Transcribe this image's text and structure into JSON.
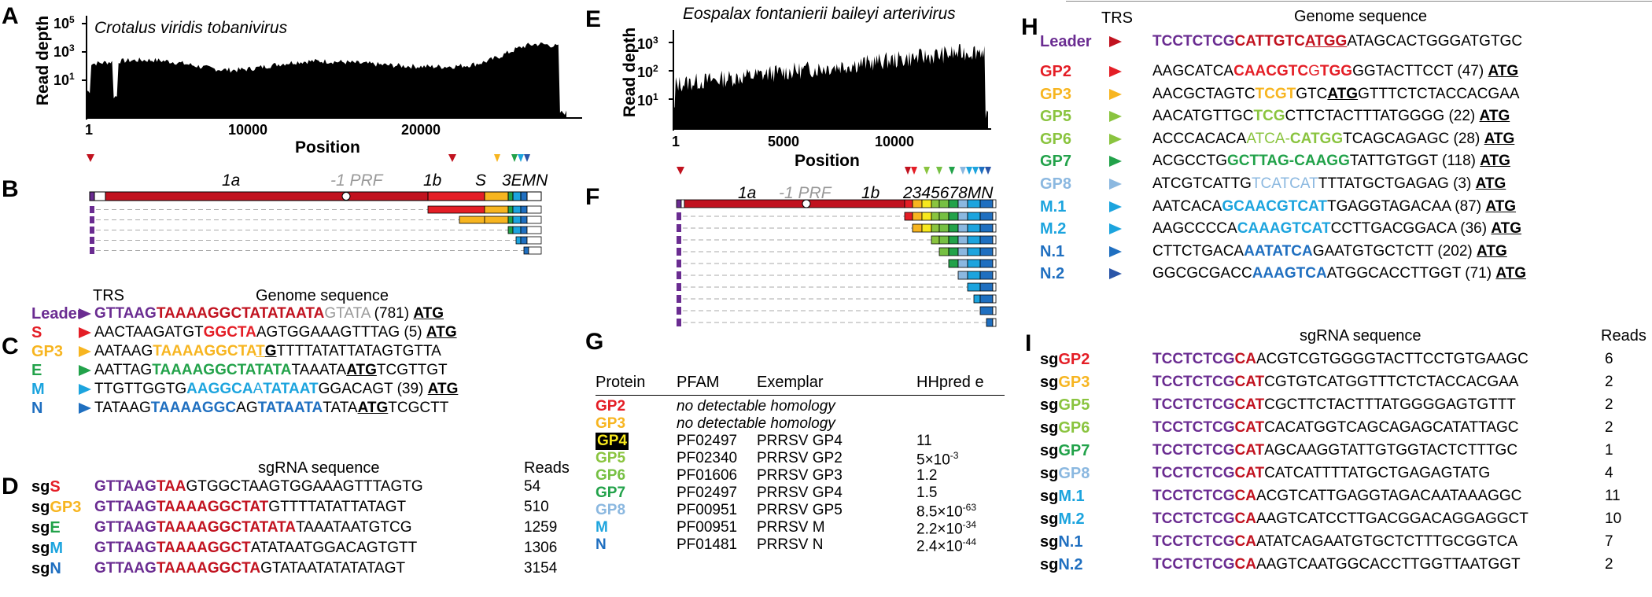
{
  "colors": {
    "leader": "#6a2c91",
    "red": "#e41e26",
    "darkred": "#c1121f",
    "orange": "#f7b520",
    "yellow": "#f7c81e",
    "green": "#22a24a",
    "lightgreen": "#8ac43f",
    "limegreen": "#76c043",
    "paleblue": "#8bb8e0",
    "cyan": "#1ca4de",
    "blue": "#1f6fc0",
    "navy": "#2a55a8",
    "gray": "#999999"
  },
  "panelA": {
    "letter": "A",
    "title": "Crotalus viridis tobanivirus",
    "ylabel": "Read depth",
    "xlabel": "Position",
    "yticks": [
      "10",
      "10",
      "10"
    ],
    "yticks_exp": [
      "5",
      "3",
      "1"
    ],
    "xticks": [
      "1",
      "10000",
      "20000"
    ]
  },
  "panelE": {
    "letter": "E",
    "title": "Eospalax fontanierii baileyi arterivirus",
    "ylabel": "Read depth",
    "xlabel": "Position",
    "yticks": [
      "10",
      "10",
      "10"
    ],
    "yticks_exp": [
      "3",
      "2",
      "1"
    ],
    "xticks": [
      "1",
      "5000",
      "10000"
    ]
  },
  "panelB": {
    "letter": "B",
    "labels": [
      "1a",
      "-1 PRF",
      "1b",
      "S",
      "3EMN"
    ]
  },
  "panelF": {
    "letter": "F",
    "labels": [
      "1a",
      "-1 PRF",
      "1b",
      "2345678MN"
    ]
  },
  "panelC": {
    "letter": "C",
    "col_trs": "TRS",
    "col_genome": "Genome sequence",
    "rows": [
      {
        "name": "Leader",
        "color": "#6a2c91",
        "segs": [
          [
            "GTTAAG",
            "#6a2c91",
            1
          ],
          [
            "TAAAAGGCTATATAATA",
            "#c1121f",
            1
          ],
          [
            "GTATA",
            "#999999",
            0
          ],
          [
            " (781) ",
            "#000",
            0
          ],
          [
            "ATG",
            "#000",
            2
          ]
        ]
      },
      {
        "name": "S",
        "color": "#e41e26",
        "segs": [
          [
            "AACTAAGATGT",
            "#000",
            0
          ],
          [
            "GGCTA",
            "#e41e26",
            1
          ],
          [
            "AGTGGAAAGTTTAG (5) ",
            "#000",
            0
          ],
          [
            "ATG",
            "#000",
            2
          ]
        ]
      },
      {
        "name": "GP3",
        "color": "#f7b520",
        "segs": [
          [
            "AATAAG",
            "#000",
            0
          ],
          [
            "TAAAAGGCTA",
            "#f7b520",
            1
          ],
          [
            "T",
            "#f7b520",
            3
          ],
          [
            "G",
            "#000",
            2
          ],
          [
            "TTTTATATTATAGTGTTA",
            "#000",
            0
          ]
        ]
      },
      {
        "name": "E",
        "color": "#22a24a",
        "segs": [
          [
            "AATTAG",
            "#000",
            0
          ],
          [
            "TAAAAGGCTATATA",
            "#22a24a",
            1
          ],
          [
            "TAAATA",
            "#000",
            0
          ],
          [
            "ATG",
            "#000",
            2
          ],
          [
            "TCGTTGT",
            "#000",
            0
          ]
        ]
      },
      {
        "name": "M",
        "color": "#1ca4de",
        "segs": [
          [
            "TTGTTGGTG",
            "#000",
            0
          ],
          [
            "AAGGCA",
            "#1ca4de",
            1
          ],
          [
            "A",
            "#1ca4de",
            0
          ],
          [
            "TATAAT",
            "#1ca4de",
            1
          ],
          [
            "GGACAGT (39) ",
            "#000",
            0
          ],
          [
            "ATG",
            "#000",
            2
          ]
        ]
      },
      {
        "name": "N",
        "color": "#1f6fc0",
        "segs": [
          [
            "TATAAG",
            "#000",
            0
          ],
          [
            "TAAAAGGC",
            "#1f6fc0",
            1
          ],
          [
            "AG",
            "#000",
            0
          ],
          [
            "TATAATA",
            "#1f6fc0",
            1
          ],
          [
            "TATA",
            "#000",
            0
          ],
          [
            "ATG",
            "#000",
            2
          ],
          [
            "TCGCTT",
            "#000",
            0
          ]
        ]
      }
    ]
  },
  "panelD": {
    "letter": "D",
    "col_seq": "sgRNA sequence",
    "col_reads": "Reads",
    "rows": [
      {
        "name": "S",
        "color": "#e41e26",
        "segs": [
          [
            "GTTAAG",
            "#6a2c91",
            1
          ],
          [
            "TAA",
            "#c1121f",
            1
          ],
          [
            "GTGGCTAAGTGGAAAGTTTAGTG",
            "#000",
            0
          ]
        ],
        "reads": "54"
      },
      {
        "name": "GP3",
        "color": "#f7b520",
        "segs": [
          [
            "GTTAAG",
            "#6a2c91",
            1
          ],
          [
            "TAAAAGGCTAT",
            "#c1121f",
            1
          ],
          [
            "GTTTTATATTATAGT",
            "#000",
            0
          ]
        ],
        "reads": "510"
      },
      {
        "name": "E",
        "color": "#22a24a",
        "segs": [
          [
            "GTTAAG",
            "#6a2c91",
            1
          ],
          [
            "TAAAAGGCTATATA",
            "#c1121f",
            1
          ],
          [
            "TAAATAATGTCG",
            "#000",
            0
          ]
        ],
        "reads": "1259"
      },
      {
        "name": "M",
        "color": "#1ca4de",
        "segs": [
          [
            "GTTAAG",
            "#6a2c91",
            1
          ],
          [
            "TAAAAGGCT",
            "#c1121f",
            1
          ],
          [
            "ATATAATGGACAGTGTT",
            "#000",
            0
          ]
        ],
        "reads": "1306"
      },
      {
        "name": "N",
        "color": "#1f6fc0",
        "segs": [
          [
            "GTTAAG",
            "#6a2c91",
            1
          ],
          [
            "TAAAAGGCTA",
            "#c1121f",
            1
          ],
          [
            "GTATAATATATATAGT",
            "#000",
            0
          ]
        ],
        "reads": "3154"
      }
    ]
  },
  "panelG": {
    "letter": "G",
    "headers": [
      "Protein",
      "PFAM",
      "Exemplar",
      "HHpred e"
    ],
    "rows": [
      {
        "protein": "GP2",
        "color": "#e41e26",
        "pfam": "no detectable homology",
        "exemplar": "",
        "e": "",
        "italic": true
      },
      {
        "protein": "GP3",
        "color": "#f7b520",
        "pfam": "no detectable homology",
        "exemplar": "",
        "e": "",
        "italic": true
      },
      {
        "protein": "GP4",
        "color": "#f7e81e",
        "pfam": "PF02497",
        "exemplar": "PRRSV GP4",
        "e": "11",
        "highlight": true
      },
      {
        "protein": "GP5",
        "color": "#8ac43f",
        "pfam": "PF02340",
        "exemplar": "PRRSV GP2",
        "e": "5×10",
        "e_exp": "-3"
      },
      {
        "protein": "GP6",
        "color": "#76c043",
        "pfam": "PF01606",
        "exemplar": "PRRSV GP3",
        "e": "1.2"
      },
      {
        "protein": "GP7",
        "color": "#22a24a",
        "pfam": "PF02497",
        "exemplar": "PRRSV GP4",
        "e": "1.5"
      },
      {
        "protein": "GP8",
        "color": "#8bb8e0",
        "pfam": "PF00951",
        "exemplar": "PRRSV GP5",
        "e": "8.5×10",
        "e_exp": "-63"
      },
      {
        "protein": "M",
        "color": "#1ca4de",
        "pfam": "PF00951",
        "exemplar": "PRRSV M",
        "e": "2.2×10",
        "e_exp": "-34"
      },
      {
        "protein": "N",
        "color": "#1f6fc0",
        "pfam": "PF01481",
        "exemplar": "PRRSV N",
        "e": "2.4×10",
        "e_exp": "-44"
      }
    ]
  },
  "panelH": {
    "letter": "H",
    "col_trs": "TRS",
    "col_genome": "Genome sequence",
    "rows": [
      {
        "name": "Leader",
        "color": "#6a2c91",
        "tri": "#c1121f",
        "segs": [
          [
            "TCCTCTCG",
            "#6a2c91",
            1
          ],
          [
            "CATTGTC",
            "#c1121f",
            1
          ],
          [
            "ATGG",
            "#c1121f",
            3
          ],
          [
            "ATAGCACTGGGATGTGC",
            "#000",
            0
          ]
        ]
      },
      {
        "name": "GP2",
        "color": "#e41e26",
        "tri": "#e41e26",
        "segs": [
          [
            "AAGCATCA",
            "#000",
            0
          ],
          [
            "CAACGTC",
            "#e41e26",
            1
          ],
          [
            "G",
            "#e41e26",
            0
          ],
          [
            "TGG",
            "#e41e26",
            1
          ],
          [
            "GGTACTTCCT (47) ",
            "#000",
            0
          ],
          [
            "ATG",
            "#000",
            2
          ]
        ]
      },
      {
        "name": "GP3",
        "color": "#f7b520",
        "tri": "#f7b520",
        "segs": [
          [
            "AACGCTAGTC",
            "#000",
            0
          ],
          [
            "TCGT",
            "#f7b520",
            1
          ],
          [
            "GTC",
            "#000",
            0
          ],
          [
            "ATG",
            "#000",
            2
          ],
          [
            "GTTTCTCTACCACGAA",
            "#000",
            0
          ]
        ]
      },
      {
        "name": "GP5",
        "color": "#8ac43f",
        "tri": "#8ac43f",
        "segs": [
          [
            "AACATGTTGC",
            "#000",
            0
          ],
          [
            "TCG",
            "#8ac43f",
            1
          ],
          [
            "CTTCTACTTTATGGGG (22) ",
            "#000",
            0
          ],
          [
            "ATG",
            "#000",
            2
          ]
        ]
      },
      {
        "name": "GP6",
        "color": "#8ac43f",
        "tri": "#8ac43f",
        "segs": [
          [
            "ACCCACACA",
            "#000",
            0
          ],
          [
            "ATCA-",
            "#8ac43f",
            0
          ],
          [
            "CATGG",
            "#8ac43f",
            1
          ],
          [
            "TCAGCAGAGC (28) ",
            "#000",
            0
          ],
          [
            "ATG",
            "#000",
            2
          ]
        ]
      },
      {
        "name": "GP7",
        "color": "#22a24a",
        "tri": "#22a24a",
        "segs": [
          [
            "ACGCCTG",
            "#000",
            0
          ],
          [
            "GCTTAG-CAAGG",
            "#22a24a",
            1
          ],
          [
            "TATTGTGGT (118) ",
            "#000",
            0
          ],
          [
            "ATG",
            "#000",
            2
          ]
        ]
      },
      {
        "name": "GP8",
        "color": "#8bb8e0",
        "tri": "#8bb8e0",
        "segs": [
          [
            "ATCGTCATTG",
            "#000",
            0
          ],
          [
            "TCATCAT",
            "#8bb8e0",
            0
          ],
          [
            "TTTATGCTGAGAG (3) ",
            "#000",
            0
          ],
          [
            "ATG",
            "#000",
            2
          ]
        ]
      },
      {
        "name": "M.1",
        "color": "#1ca4de",
        "tri": "#1ca4de",
        "segs": [
          [
            "AATCACA",
            "#000",
            0
          ],
          [
            "GCAACGTCAT",
            "#1ca4de",
            1
          ],
          [
            "TGAGGTAGACAA (87) ",
            "#000",
            0
          ],
          [
            "ATG",
            "#000",
            2
          ]
        ]
      },
      {
        "name": "M.2",
        "color": "#1ca4de",
        "tri": "#1ca4de",
        "segs": [
          [
            "AAGCCCCA",
            "#000",
            0
          ],
          [
            "CAAAGTCAT",
            "#1ca4de",
            1
          ],
          [
            "CCTTGACGGACA (36) ",
            "#000",
            0
          ],
          [
            "ATG",
            "#000",
            2
          ]
        ]
      },
      {
        "name": "N.1",
        "color": "#1f6fc0",
        "tri": "#1f6fc0",
        "segs": [
          [
            "CTTCTGACA",
            "#000",
            0
          ],
          [
            "AATATCA",
            "#1f6fc0",
            1
          ],
          [
            "GAATGTGCTCTT (202) ",
            "#000",
            0
          ],
          [
            "ATG",
            "#000",
            2
          ]
        ]
      },
      {
        "name": "N.2",
        "color": "#1f6fc0",
        "tri": "#2a55a8",
        "segs": [
          [
            "GGCGCGACC",
            "#000",
            0
          ],
          [
            "AAAGTCA",
            "#1f6fc0",
            1
          ],
          [
            "ATGGCACCTTGGT (71) ",
            "#000",
            0
          ],
          [
            "ATG",
            "#000",
            2
          ]
        ]
      }
    ]
  },
  "panelI": {
    "letter": "I",
    "col_seq": "sgRNA sequence",
    "col_reads": "Reads",
    "rows": [
      {
        "name": "GP2",
        "color": "#e41e26",
        "segs": [
          [
            "TCCTCTCG",
            "#6a2c91",
            1
          ],
          [
            "CA",
            "#c1121f",
            1
          ],
          [
            "ACGTCGTGGGGTACTTCCTGTGAAGC",
            "#000",
            0
          ]
        ],
        "reads": "6"
      },
      {
        "name": "GP3",
        "color": "#f7b520",
        "segs": [
          [
            "TCCTCTCG",
            "#6a2c91",
            1
          ],
          [
            "CAT",
            "#c1121f",
            1
          ],
          [
            "CGTGTCATGGTTTCTCTACCACGAA",
            "#000",
            0
          ]
        ],
        "reads": "2"
      },
      {
        "name": "GP5",
        "color": "#8ac43f",
        "segs": [
          [
            "TCCTCTCG",
            "#6a2c91",
            1
          ],
          [
            "CAT",
            "#c1121f",
            1
          ],
          [
            "CGCTTCTACTTTATGGGGAGTGTTT",
            "#000",
            0
          ]
        ],
        "reads": "2"
      },
      {
        "name": "GP6",
        "color": "#8ac43f",
        "segs": [
          [
            "TCCTCTCG",
            "#6a2c91",
            1
          ],
          [
            "CAT",
            "#c1121f",
            1
          ],
          [
            "CACATGGTCAGCAGAGCATATTAGC",
            "#000",
            0
          ]
        ],
        "reads": "2"
      },
      {
        "name": "GP7",
        "color": "#22a24a",
        "segs": [
          [
            "TCCTCTCG",
            "#6a2c91",
            1
          ],
          [
            "CAT",
            "#c1121f",
            1
          ],
          [
            "AGCAAGGTATTGTGGTACTCTTTGC",
            "#000",
            0
          ]
        ],
        "reads": "1"
      },
      {
        "name": "GP8",
        "color": "#8bb8e0",
        "segs": [
          [
            "TCCTCTCG",
            "#6a2c91",
            1
          ],
          [
            "CAT",
            "#c1121f",
            1
          ],
          [
            "CATCATTTTATGCTGAGAGTATG",
            "#000",
            0
          ]
        ],
        "reads": "4"
      },
      {
        "name": "M.1",
        "color": "#1ca4de",
        "segs": [
          [
            "TCCTCTCG",
            "#6a2c91",
            1
          ],
          [
            "CA",
            "#c1121f",
            1
          ],
          [
            "ACGTCATTGAGGTAGACAATAAAGGC",
            "#000",
            0
          ]
        ],
        "reads": "11"
      },
      {
        "name": "M.2",
        "color": "#1ca4de",
        "segs": [
          [
            "TCCTCTCG",
            "#6a2c91",
            1
          ],
          [
            "CA",
            "#c1121f",
            1
          ],
          [
            "AAGTCATCCTTGACGGACAGGAGGCT",
            "#000",
            0
          ]
        ],
        "reads": "10"
      },
      {
        "name": "N.1",
        "color": "#1f6fc0",
        "segs": [
          [
            "TCCTCTCG",
            "#6a2c91",
            1
          ],
          [
            "CA",
            "#c1121f",
            1
          ],
          [
            "ATATCAGAATGTGCTCTTTGCGGTCA",
            "#000",
            0
          ]
        ],
        "reads": "7"
      },
      {
        "name": "N.2",
        "color": "#1f6fc0",
        "segs": [
          [
            "TCCTCTCG",
            "#6a2c91",
            1
          ],
          [
            "CA",
            "#c1121f",
            1
          ],
          [
            "AAGTCAATGGCACCTTGGTTAATGGT",
            "#000",
            0
          ]
        ],
        "reads": "2"
      }
    ]
  }
}
